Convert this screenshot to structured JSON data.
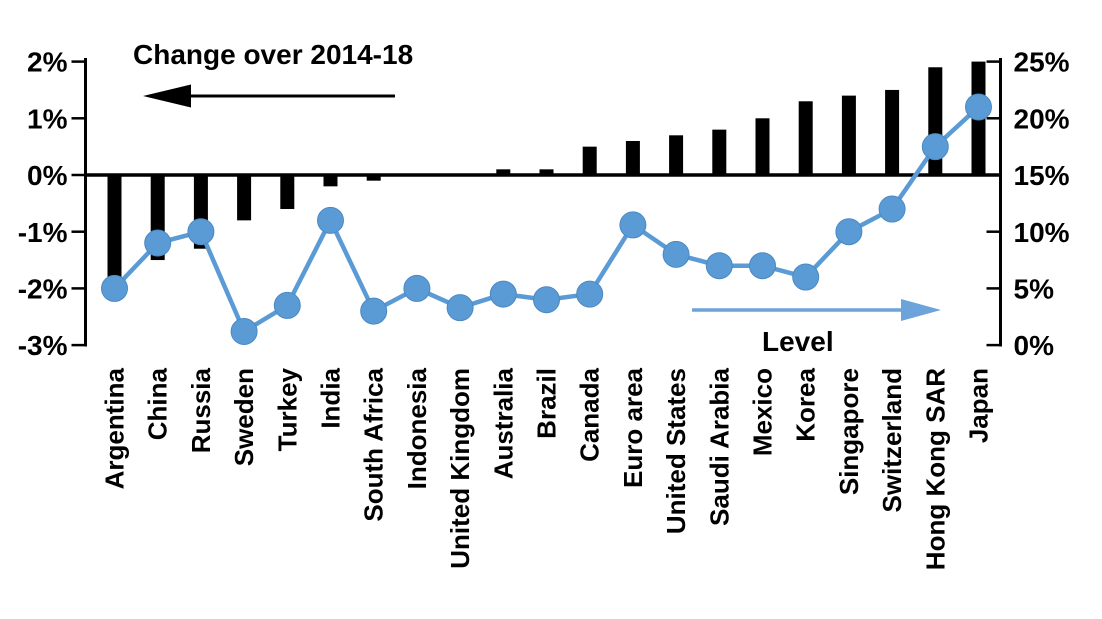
{
  "annotations": {
    "change_label": "Change over 2014-18",
    "level_label": "Level"
  },
  "colors": {
    "bar": "#000000",
    "line": "#5b9bd5",
    "dot": "#5b9bd5",
    "axis": "#000000",
    "text": "#000000",
    "background": "#ffffff",
    "black_arrow": "#000000",
    "blue_arrow": "#6ba3da"
  },
  "left_axis": {
    "title": "Change over 2014-18",
    "tick_labels": [
      "2%",
      "1%",
      "0%",
      "-1%",
      "-2%",
      "-3%"
    ],
    "tick_values": [
      2,
      1,
      0,
      -1,
      -2,
      -3
    ],
    "min": -3,
    "max": 2,
    "arrow_direction": "left"
  },
  "right_axis": {
    "title": "Level",
    "tick_labels": [
      "25%",
      "20%",
      "15%",
      "10%",
      "5%",
      "0%"
    ],
    "tick_values": [
      25,
      20,
      15,
      10,
      5,
      0
    ],
    "min": 0,
    "max": 25,
    "arrow_direction": "right"
  },
  "chart_data": {
    "type": "bar",
    "subtype": "bar-line-combo",
    "title": "",
    "xlabel": "",
    "ylabel_left": "Change over 2014-18 (%)",
    "ylabel_right": "Level (%)",
    "grid": false,
    "legend_position": "in-plot arrows with labels",
    "categories": [
      "Argentina",
      "China",
      "Russia",
      "Sweden",
      "Turkey",
      "India",
      "South Africa",
      "Indonesia",
      "United Kingdom",
      "Australia",
      "Brazil",
      "Canada",
      "Euro area",
      "United States",
      "Saudi Arabia",
      "Mexico",
      "Korea",
      "Singapore",
      "Switzerland",
      "Hong Kong SAR",
      "Japan"
    ],
    "series": [
      {
        "name": "Change over 2014-18",
        "type": "bar",
        "axis": "left",
        "unit": "%",
        "ylim": [
          -3,
          2
        ],
        "color": "#000000",
        "values": [
          -1.8,
          -1.5,
          -1.3,
          -0.8,
          -0.6,
          -0.2,
          -0.1,
          0,
          0,
          0.1,
          0.1,
          0.5,
          0.6,
          0.7,
          0.8,
          1.0,
          1.3,
          1.4,
          1.5,
          1.9,
          2.0
        ]
      },
      {
        "name": "Level",
        "type": "line",
        "axis": "right",
        "unit": "%",
        "ylim": [
          0,
          25
        ],
        "color": "#5b9bd5",
        "values": [
          5,
          9,
          10,
          1.2,
          3.5,
          11,
          3,
          5,
          3.3,
          4.5,
          4,
          4.5,
          10.6,
          8,
          7,
          7,
          6,
          10,
          12,
          17.5,
          21
        ]
      }
    ]
  }
}
